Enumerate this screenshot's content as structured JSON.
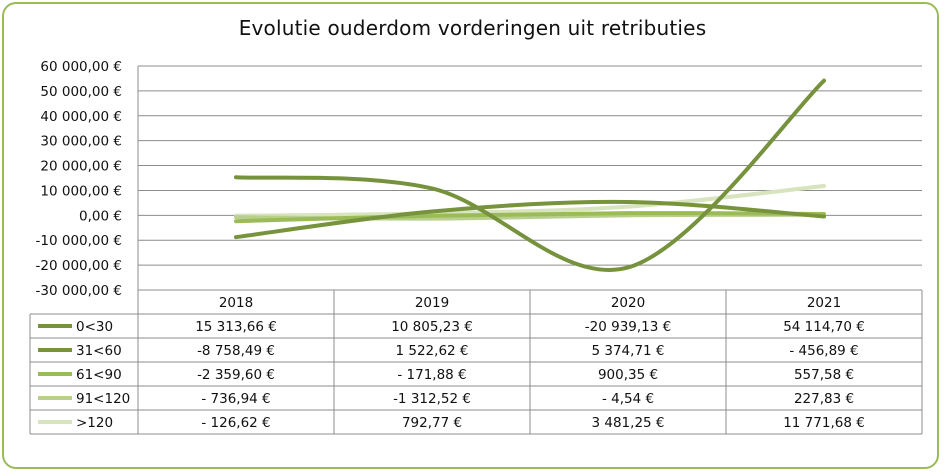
{
  "chart_data": {
    "type": "line",
    "title": "Evolutie ouderdom vorderingen uit retributies",
    "categories": [
      "2018",
      "2019",
      "2020",
      "2021"
    ],
    "ylim": [
      -30000,
      60000
    ],
    "yticks": [
      -30000,
      -20000,
      -10000,
      0,
      10000,
      20000,
      30000,
      40000,
      50000,
      60000
    ],
    "ytick_labels": [
      "-30 000,00 €",
      "-20 000,00 €",
      "-10 000,00 €",
      "0,00 €",
      "10 000,00 €",
      "20 000,00 €",
      "30 000,00 €",
      "40 000,00 €",
      "50 000,00 €",
      "60 000,00 €"
    ],
    "grid": true,
    "legend": "data table",
    "series": [
      {
        "name": "0<30",
        "color": "#76923c",
        "values": [
          15313.66,
          10805.23,
          -20939.13,
          54114.7
        ],
        "labels": [
          "15 313,66 €",
          "10 805,23 €",
          "-20 939,13 €",
          "54 114,70 €"
        ]
      },
      {
        "name": "31<60",
        "color": "#77933c",
        "values": [
          -8758.49,
          1522.62,
          5374.71,
          -456.89
        ],
        "labels": [
          "-8 758,49 €",
          "1 522,62 €",
          "5 374,71 €",
          "- 456,89 €"
        ]
      },
      {
        "name": "61<90",
        "color": "#9bbb59",
        "values": [
          -2359.6,
          -171.88,
          900.35,
          557.58
        ],
        "labels": [
          "-2 359,60 €",
          "- 171,88 €",
          "900,35 €",
          "557,58 €"
        ]
      },
      {
        "name": "91<120",
        "color": "#b8cf8d",
        "values": [
          -736.94,
          -1312.52,
          -4.54,
          227.83
        ],
        "labels": [
          "- 736,94 €",
          "-1 312,52 €",
          "- 4,54 €",
          "227,83 €"
        ]
      },
      {
        "name": ">120",
        "color": "#d7e4bd",
        "values": [
          -126.62,
          792.77,
          3481.25,
          11771.68
        ],
        "labels": [
          "- 126,62 €",
          "792,77 €",
          "3 481,25 €",
          "11 771,68 €"
        ]
      }
    ]
  }
}
